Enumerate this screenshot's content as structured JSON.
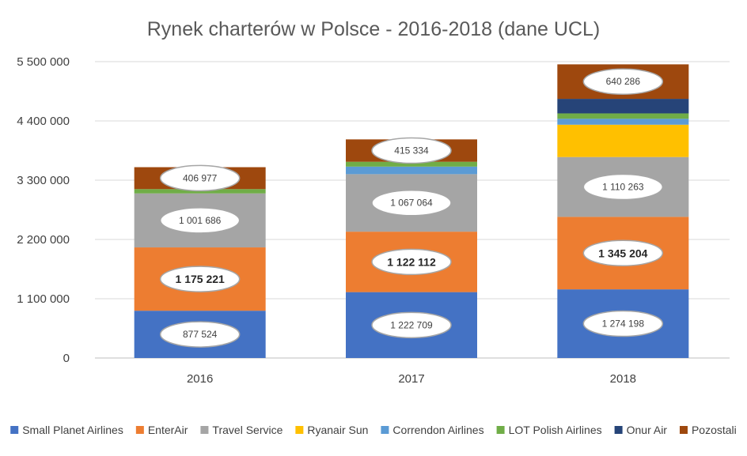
{
  "chart_data": {
    "type": "bar",
    "stacked": true,
    "title": "Rynek charterów w Polsce - 2016-2018 (dane UCL)",
    "xlabel": "",
    "ylabel": "",
    "categories": [
      "2016",
      "2017",
      "2018"
    ],
    "ylim": [
      0,
      5500000
    ],
    "yticks": [
      0,
      1100000,
      2200000,
      3300000,
      4400000,
      5500000
    ],
    "ytick_labels": [
      "0",
      "1 100 000",
      "2 200 000",
      "3 300 000",
      "4 400 000",
      "5 500 000"
    ],
    "grid": true,
    "legend_position": "bottom",
    "series": [
      {
        "name": "Small Planet Airlines",
        "color": "#4472C4",
        "values": [
          877524,
          1222709,
          1274198
        ],
        "labels": [
          "877 524",
          "1 222 709",
          "1 274 198"
        ],
        "label_bold": false
      },
      {
        "name": "EnterAir",
        "color": "#ED7D31",
        "values": [
          1175221,
          1122112,
          1345204
        ],
        "labels": [
          "1 175 221",
          "1 122 112",
          "1 345 204"
        ],
        "label_bold": true
      },
      {
        "name": "Travel Service",
        "color": "#A5A5A5",
        "values": [
          1001686,
          1067064,
          1110263
        ],
        "labels": [
          "1 001 686",
          "1 067 064",
          "1 110 263"
        ],
        "label_bold": false
      },
      {
        "name": "Ryanair Sun",
        "color": "#FFC000",
        "values": [
          0,
          0,
          600000
        ],
        "labels": [
          "",
          "",
          ""
        ],
        "label_bold": false
      },
      {
        "name": "Correndon Airlines",
        "color": "#5B9BD5",
        "values": [
          0,
          140000,
          110000
        ],
        "labels": [
          "",
          "",
          ""
        ],
        "label_bold": false
      },
      {
        "name": "LOT Polish Airlines",
        "color": "#70AD47",
        "values": [
          80000,
          90000,
          100000
        ],
        "labels": [
          "",
          "",
          ""
        ],
        "label_bold": false
      },
      {
        "name": "Onur Air",
        "color": "#264478",
        "values": [
          0,
          0,
          270000
        ],
        "labels": [
          "",
          "",
          ""
        ],
        "label_bold": false
      },
      {
        "name": "Pozostali",
        "color": "#9E480E",
        "values": [
          406977,
          415334,
          640286
        ],
        "labels": [
          "406 977",
          "415 334",
          "640 286"
        ],
        "label_bold": false
      }
    ]
  }
}
